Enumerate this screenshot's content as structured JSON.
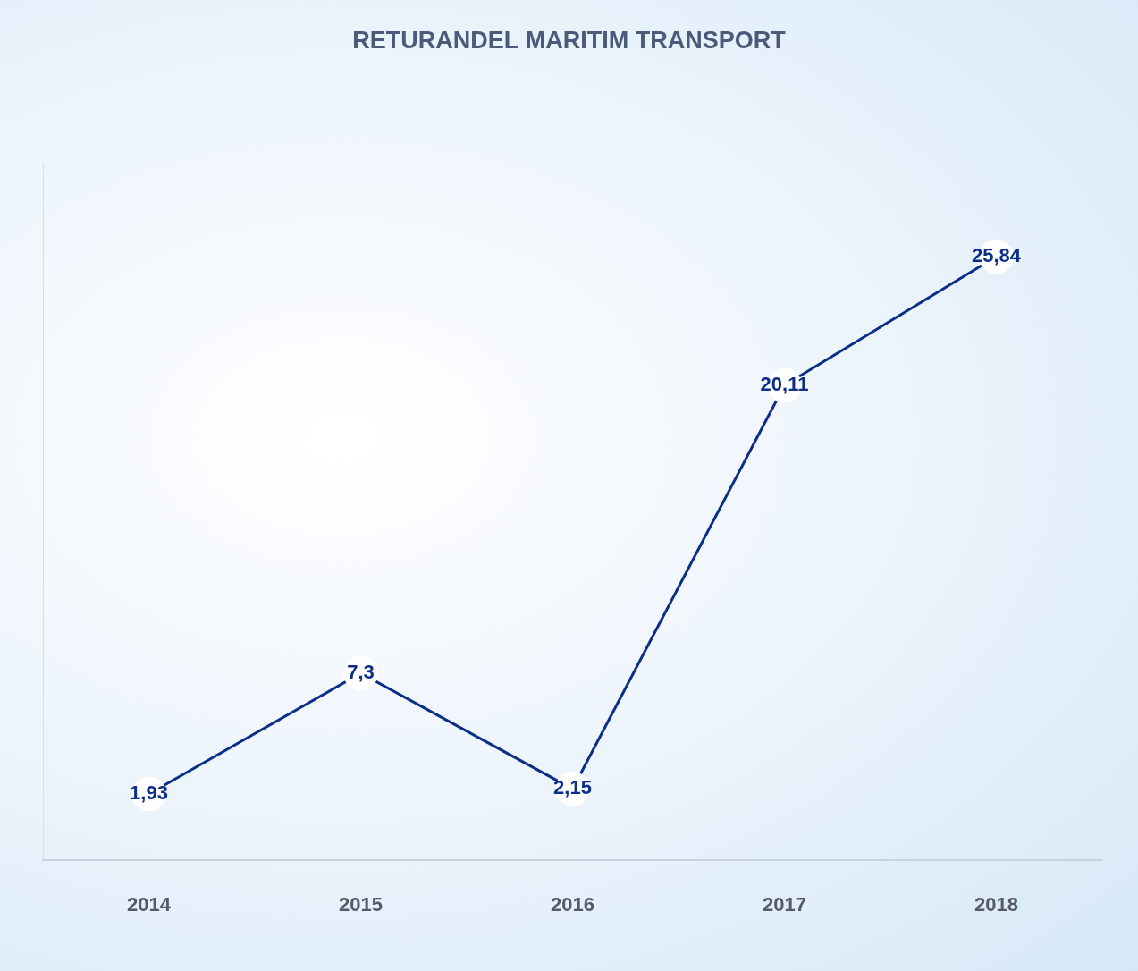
{
  "chart_data": {
    "type": "line",
    "title": "RETURANDEL MARITIM TRANSPORT",
    "categories": [
      "2014",
      "2015",
      "2016",
      "2017",
      "2018"
    ],
    "values": [
      1.93,
      7.3,
      2.15,
      20.11,
      25.84
    ],
    "value_labels": [
      "1,93",
      "7,3",
      "2,15",
      "20,11",
      "25,84"
    ],
    "color": "#0b2e86",
    "ylim": [
      -1,
      30
    ],
    "grid": false,
    "data_labels": true,
    "tick_labels": "x",
    "marker": "circle",
    "line_style": "solid"
  }
}
